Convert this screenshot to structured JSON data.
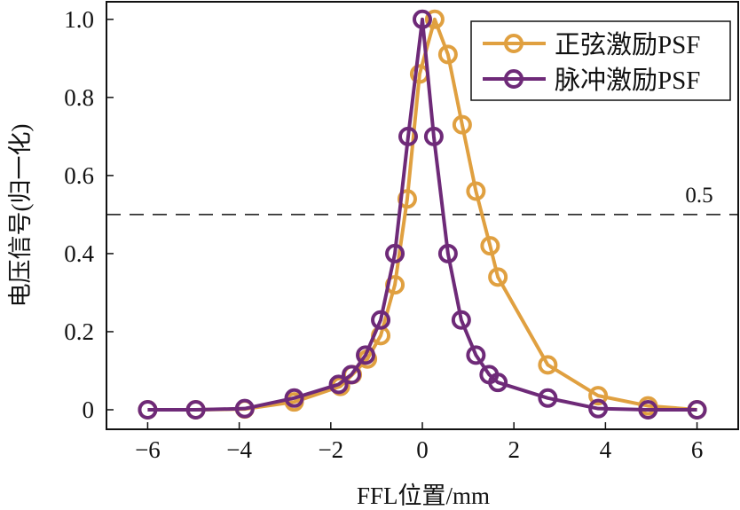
{
  "chart_data": {
    "type": "line",
    "title": "",
    "xlabel": "FFL位置/mm",
    "ylabel": "电压信号(归一化)",
    "xlim": [
      -6.9,
      6.9
    ],
    "ylim": [
      -0.05,
      1.045
    ],
    "xticks": [
      -6,
      -4,
      -2,
      0,
      2,
      4,
      6
    ],
    "xtick_labels": [
      "−6",
      "−4",
      "−2",
      "0",
      "2",
      "4",
      "6"
    ],
    "yticks": [
      0,
      0.2,
      0.4,
      0.6,
      0.8,
      1.0
    ],
    "ytick_labels": [
      "0",
      "0.2",
      "0.4",
      "0.6",
      "0.8",
      "1.0"
    ],
    "grid": false,
    "legend_position": "top-right",
    "reference_line": {
      "y": 0.5,
      "label": "0.5",
      "style": "dashed"
    },
    "series": [
      {
        "name": "正弦激励PSF",
        "color": "#E0A040",
        "marker": "open-circle",
        "x": [
          -6,
          -4.95,
          -3.88,
          -2.8,
          -1.79,
          -1.53,
          -1.2,
          -0.91,
          -0.6,
          -0.33,
          -0.06,
          0.27,
          0.56,
          0.87,
          1.17,
          1.48,
          1.65,
          2.74,
          3.84,
          4.93,
          6
        ],
        "y": [
          0,
          0,
          0.002,
          0.02,
          0.06,
          0.09,
          0.13,
          0.19,
          0.32,
          0.54,
          0.86,
          1.0,
          0.91,
          0.73,
          0.56,
          0.42,
          0.34,
          0.115,
          0.036,
          0.01,
          0
        ]
      },
      {
        "name": "脉冲激励PSF",
        "color": "#6E2A78",
        "marker": "open-circle",
        "x": [
          -6,
          -4.95,
          -3.88,
          -2.8,
          -1.83,
          -1.55,
          -1.24,
          -0.91,
          -0.6,
          -0.31,
          0,
          0.25,
          0.56,
          0.85,
          1.17,
          1.46,
          1.65,
          2.74,
          3.84,
          4.93,
          6
        ],
        "y": [
          0,
          0,
          0.003,
          0.03,
          0.065,
          0.09,
          0.14,
          0.23,
          0.4,
          0.7,
          1.0,
          0.7,
          0.4,
          0.23,
          0.14,
          0.09,
          0.07,
          0.03,
          0.003,
          0,
          0
        ]
      }
    ]
  }
}
